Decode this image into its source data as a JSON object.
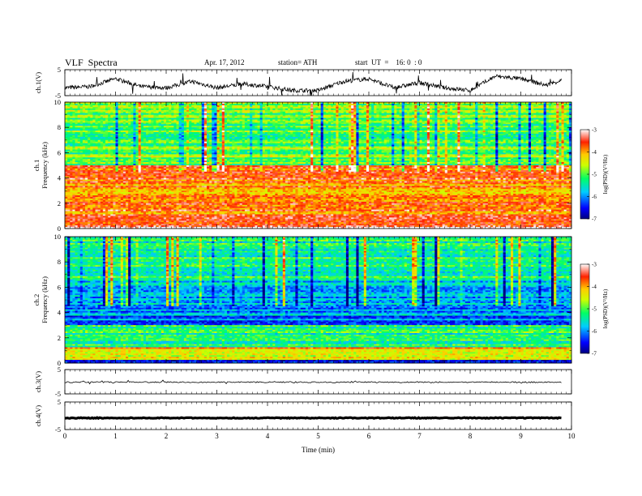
{
  "header": {
    "title": "VLF  Spectra",
    "date": "Apr. 17, 2012",
    "station": "station= ATH",
    "start": "start  UT  =    16: 0  : 0"
  },
  "chart_data": [
    {
      "type": "line",
      "panel": "ch1-waveform",
      "ylabel": "ch.1(V)",
      "ylim": [
        -5,
        5
      ],
      "yticks": [
        "5",
        "-5"
      ],
      "x_range_min": [
        0,
        9.8
      ],
      "series": [
        {
          "x": [
            0,
            0.5,
            1.0,
            1.5,
            2.0,
            2.5,
            3.0,
            3.5,
            4.0,
            4.5,
            5.0,
            5.5,
            6.0,
            6.5,
            7.0,
            7.5,
            8.0,
            8.5,
            9.0,
            9.5,
            9.8
          ],
          "values": [
            -2,
            -1.5,
            1.5,
            -1.5,
            -2,
            0.5,
            -2,
            -0.5,
            -1.5,
            -3,
            -3,
            0.5,
            1.5,
            -2,
            0,
            -2,
            -3,
            2.5,
            1.5,
            -1,
            1
          ]
        }
      ]
    },
    {
      "type": "heatmap",
      "panel": "ch1-spectrogram",
      "ylabel": "ch.1\nFrequency  (kHz)",
      "ylim": [
        0,
        10
      ],
      "yticks": [
        "0",
        "2",
        "4",
        "6",
        "8",
        "10"
      ],
      "colorbar": {
        "label": "log(PSD)(V²/Hz)",
        "range": [
          -7,
          -3
        ],
        "ticks": [
          "-3",
          "-4",
          "-5",
          "-6",
          "-7"
        ]
      },
      "band_profile_khz": [
        {
          "f": [
            0,
            0.3
          ],
          "level": -3.0
        },
        {
          "f": [
            0.3,
            1.0
          ],
          "level": -3.6
        },
        {
          "f": [
            1.0,
            3.5
          ],
          "level": -3.8
        },
        {
          "f": [
            3.5,
            5.0
          ],
          "level": -3.7
        },
        {
          "f": [
            5.0,
            6.5
          ],
          "level": -4.9
        },
        {
          "f": [
            6.5,
            10
          ],
          "level": -5.0
        }
      ]
    },
    {
      "type": "heatmap",
      "panel": "ch2-spectrogram",
      "ylabel": "ch.2\nFrequency  (kHz)",
      "ylim": [
        0,
        10
      ],
      "yticks": [
        "0",
        "2",
        "4",
        "6",
        "8",
        "10"
      ],
      "colorbar": {
        "label": "log(PSD)(V²/Hz)",
        "range": [
          -7,
          -3
        ],
        "ticks": [
          "-3",
          "-4",
          "-5",
          "-6",
          "-7"
        ]
      },
      "band_profile_khz": [
        {
          "f": [
            0,
            0.3
          ],
          "level": -6.5
        },
        {
          "f": [
            0.3,
            1.2
          ],
          "level": -4.2
        },
        {
          "f": [
            1.2,
            3.0
          ],
          "level": -5.3
        },
        {
          "f": [
            3.0,
            5.0
          ],
          "level": -6.0
        },
        {
          "f": [
            5.0,
            6.5
          ],
          "level": -5.8
        },
        {
          "f": [
            6.5,
            10
          ],
          "level": -5.3
        }
      ]
    },
    {
      "type": "line",
      "panel": "ch3-waveform",
      "ylabel": "ch.3(V)",
      "ylim": [
        -5,
        5
      ],
      "yticks": [
        "5",
        "-5"
      ],
      "series": [
        {
          "x": [
            0,
            9.8
          ],
          "values": [
            -0.2,
            -0.2
          ]
        }
      ]
    },
    {
      "type": "line",
      "panel": "ch4-waveform",
      "ylabel": "ch.4(V)",
      "ylim": [
        -5,
        5
      ],
      "yticks": [
        "5",
        "-5"
      ],
      "series": [
        {
          "x": [
            0,
            9.8
          ],
          "values": [
            -0.8,
            -0.8
          ]
        }
      ]
    }
  ],
  "x_axis": {
    "label": "Time  (min)",
    "range": [
      0,
      10
    ],
    "ticks": [
      "0",
      "1",
      "2",
      "3",
      "4",
      "5",
      "6",
      "7",
      "8",
      "9",
      "10"
    ]
  }
}
